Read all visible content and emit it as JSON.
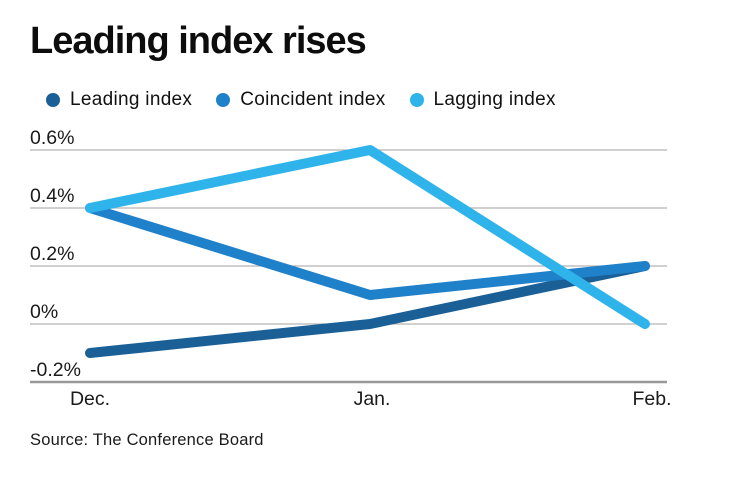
{
  "title": "Leading index rises",
  "source": "Source: The Conference Board",
  "colors": {
    "leading": "#1a6097",
    "coincident": "#2081cb",
    "lagging": "#2fb3eb",
    "grid": "#b3b3b3",
    "axis": "#999999",
    "text": "#1a1a1a",
    "title_text": "#0d0d0d"
  },
  "legend": [
    {
      "label": "Leading index",
      "color": "#1a6097"
    },
    {
      "label": "Coincident index",
      "color": "#2081cb"
    },
    {
      "label": "Lagging index",
      "color": "#2fb3eb"
    }
  ],
  "chart_data": {
    "type": "line",
    "title": "Leading index rises",
    "categories": [
      "Dec.",
      "Jan.",
      "Feb."
    ],
    "series": [
      {
        "name": "Leading index",
        "color": "#1a6097",
        "values": [
          -0.1,
          0.0,
          0.2
        ]
      },
      {
        "name": "Coincident index",
        "color": "#2081cb",
        "values": [
          0.4,
          0.1,
          0.2
        ]
      },
      {
        "name": "Lagging index",
        "color": "#2fb3eb",
        "values": [
          0.4,
          0.6,
          0.0
        ]
      }
    ],
    "unit": "percent",
    "y_ticks": [
      0.6,
      0.4,
      0.2,
      0,
      -0.2
    ],
    "y_tick_labels": [
      "0.6%",
      "0.4%",
      "0.2%",
      "0%",
      "-0.2%"
    ],
    "ylim": [
      -0.25,
      0.65
    ],
    "grid": true,
    "legend_position": "top",
    "source": "Source: The Conference Board"
  }
}
